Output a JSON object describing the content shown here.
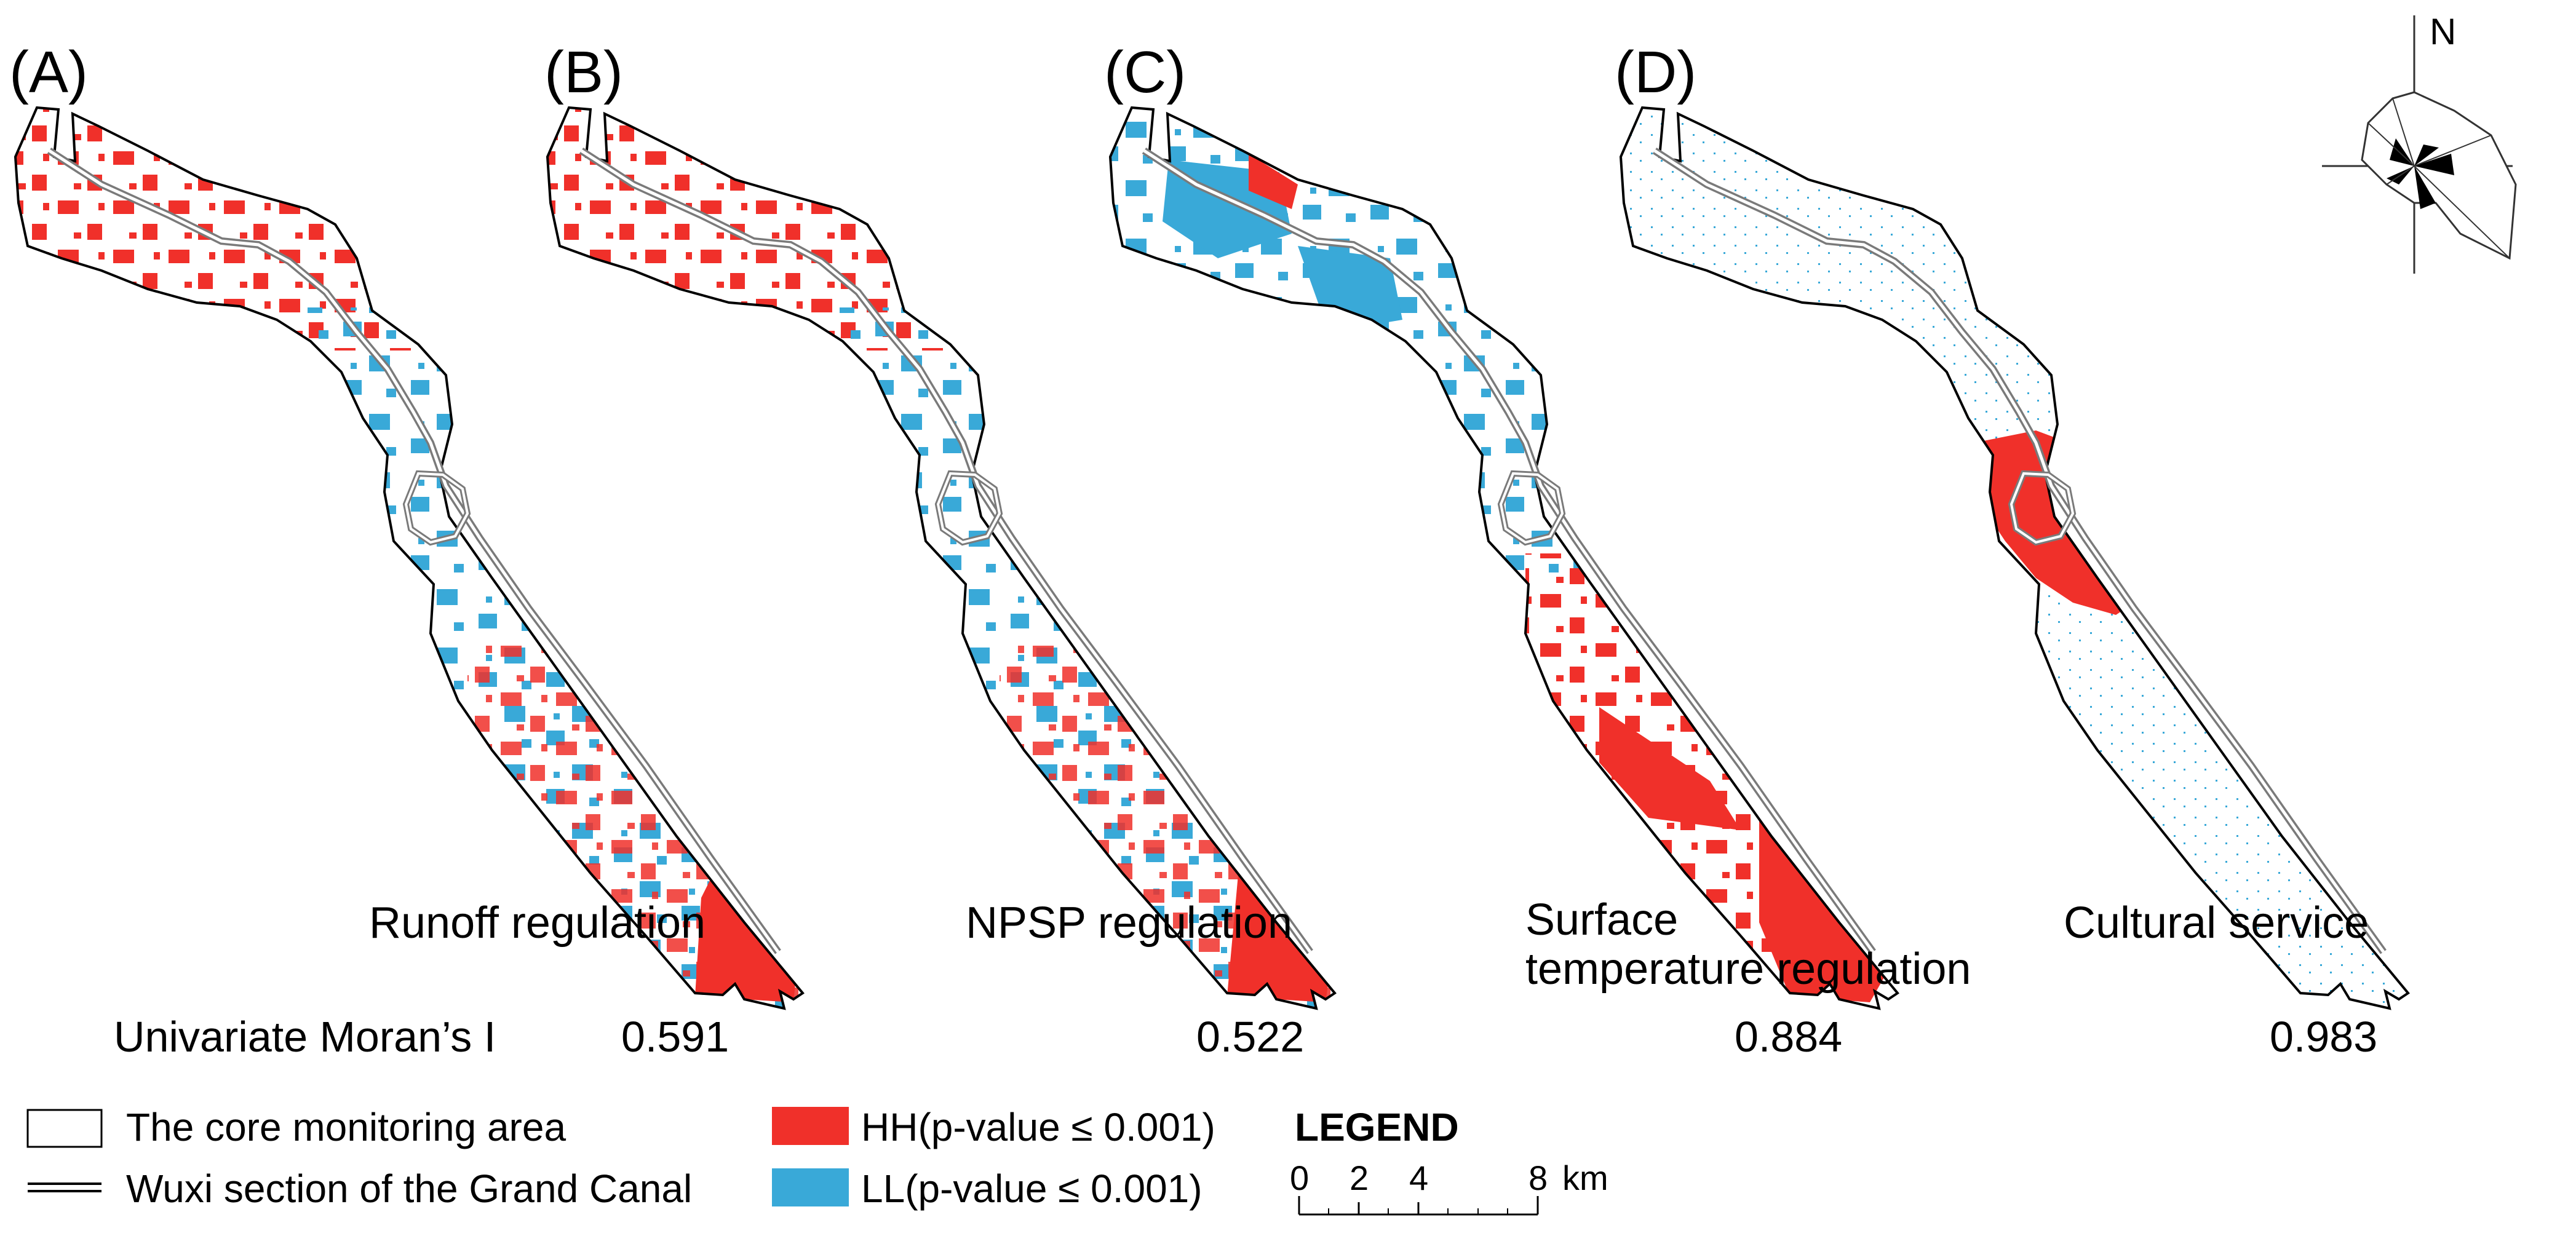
{
  "panels": [
    {
      "id": "A",
      "label": "(A)",
      "title": [
        "Runoff regulation"
      ],
      "moran": "0.591",
      "pattern": "mixed"
    },
    {
      "id": "B",
      "label": "(B)",
      "title": [
        "NPSP regulation"
      ],
      "moran": "0.522",
      "pattern": "mixed"
    },
    {
      "id": "C",
      "label": "(C)",
      "title": [
        "Surface",
        "temperature regulation"
      ],
      "moran": "0.884",
      "pattern": "clustered"
    },
    {
      "id": "D",
      "label": "(D)",
      "title": [
        "Cultural service"
      ],
      "moran": "0.983",
      "pattern": "hotspot"
    }
  ],
  "stat_label": "Univariate Moran’s I",
  "legend": {
    "core_area": "The core monitoring area",
    "canal": "Wuxi section of the Grand Canal",
    "hh": "HH(p-value ≤ 0.001)",
    "ll": "LL(p-value ≤ 0.001)",
    "title": "LEGEND"
  },
  "scale_bar": {
    "ticks": [
      "0",
      "2",
      "4",
      "8"
    ],
    "unit": "km"
  },
  "north_label": "N",
  "colors": {
    "hh": "#f0302a",
    "ll": "#39a9d8",
    "outline": "#000000",
    "canal": "#7a7a7a"
  }
}
